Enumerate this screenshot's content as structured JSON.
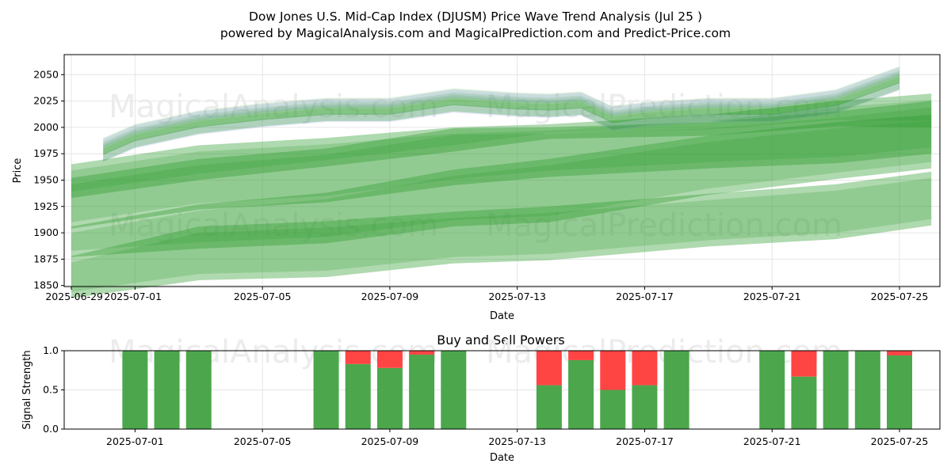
{
  "title_line1": "Dow Jones U.S. Mid-Cap Index (DJUSM) Price Wave Trend Analysis (Jul 25 )",
  "title_line2": "powered by MagicalAnalysis.com and MagicalPrediction.com and Predict-Price.com",
  "watermarks": [
    "MagicalAnalysis.com",
    "MagicalPrediction.com"
  ],
  "colors": {
    "band_green": "#2e9b2e",
    "band_blue": "#6b7fe0",
    "buy": "#4ca64c",
    "sell": "#ff4444",
    "grid": "#e6e6e6",
    "watermark": "#ececec"
  },
  "chart_data": [
    {
      "type": "area",
      "title": "",
      "xlabel": "Date",
      "ylabel": "Price",
      "xlim": [
        "2025-06-29",
        "2025-07-26"
      ],
      "ylim": [
        1849,
        2069
      ],
      "grid": true,
      "x_tick_labels": [
        "2025-06-29",
        "2025-07-01",
        "2025-07-05",
        "2025-07-09",
        "2025-07-13",
        "2025-07-17",
        "2025-07-21",
        "2025-07-25"
      ],
      "y_tick_labels": [
        "1850",
        "1875",
        "1900",
        "1925",
        "1950",
        "1975",
        "2000",
        "2025",
        "2050"
      ],
      "wave_x": [
        "2025-06-30",
        "2025-07-01",
        "2025-07-03",
        "2025-07-05",
        "2025-07-07",
        "2025-07-09",
        "2025-07-11",
        "2025-07-13",
        "2025-07-14",
        "2025-07-15",
        "2025-07-16",
        "2025-07-17",
        "2025-07-19",
        "2025-07-21",
        "2025-07-23",
        "2025-07-25"
      ],
      "wave_mid": [
        1978,
        1991,
        2004,
        2011,
        2016,
        2016,
        2025,
        2021,
        2020,
        2022,
        2008,
        2012,
        2016,
        2016,
        2024,
        2046
      ],
      "forecast_bands": [
        {
          "x": [
            "2025-06-29",
            "2025-07-03",
            "2025-07-07",
            "2025-07-11",
            "2025-07-14",
            "2025-07-19",
            "2025-07-23",
            "2025-07-26"
          ],
          "upper": [
            1965,
            1983,
            1990,
            2000,
            2003,
            2012,
            2025,
            2032
          ],
          "lower": [
            1933,
            1950,
            1963,
            1977,
            1989,
            1992,
            2001,
            2000
          ]
        },
        {
          "x": [
            "2025-06-29",
            "2025-07-03",
            "2025-07-07",
            "2025-07-11",
            "2025-07-14",
            "2025-07-19",
            "2025-07-23",
            "2025-07-26"
          ],
          "upper": [
            1952,
            1970,
            1980,
            1999,
            2000,
            2005,
            2015,
            2025
          ],
          "lower": [
            1904,
            1922,
            1929,
            1945,
            1953,
            1961,
            1966,
            1975
          ]
        },
        {
          "x": [
            "2025-06-29",
            "2025-07-03",
            "2025-07-07",
            "2025-07-11",
            "2025-07-14",
            "2025-07-19",
            "2025-07-23",
            "2025-07-26"
          ],
          "upper": [
            1906,
            1927,
            1938,
            1960,
            1970,
            1992,
            2005,
            2012
          ],
          "lower": [
            1877,
            1885,
            1890,
            1906,
            1910,
            1936,
            1951,
            1961
          ]
        },
        {
          "x": [
            "2025-06-29",
            "2025-07-03",
            "2025-07-07",
            "2025-07-11",
            "2025-07-14",
            "2025-07-19",
            "2025-07-23",
            "2025-07-26"
          ],
          "upper": [
            1878,
            1906,
            1911,
            1920,
            1925,
            1937,
            1946,
            1958
          ],
          "lower": [
            1838,
            1855,
            1858,
            1871,
            1874,
            1887,
            1894,
            1907
          ]
        }
      ]
    },
    {
      "type": "bar",
      "title": "Buy and Sell Powers",
      "xlabel": "Date",
      "ylabel": "Signal Strength",
      "xlim": [
        "2025-06-29",
        "2025-07-26"
      ],
      "ylim": [
        0,
        1
      ],
      "grid": true,
      "x_tick_labels": [
        "2025-07-01",
        "2025-07-05",
        "2025-07-09",
        "2025-07-13",
        "2025-07-17",
        "2025-07-21",
        "2025-07-25"
      ],
      "y_tick_labels": [
        "0.0",
        "0.5",
        "1.0"
      ],
      "x": [
        "2025-07-01",
        "2025-07-02",
        "2025-07-03",
        "2025-07-07",
        "2025-07-08",
        "2025-07-09",
        "2025-07-10",
        "2025-07-11",
        "2025-07-14",
        "2025-07-15",
        "2025-07-16",
        "2025-07-17",
        "2025-07-18",
        "2025-07-21",
        "2025-07-22",
        "2025-07-23",
        "2025-07-24",
        "2025-07-25"
      ],
      "series": [
        {
          "name": "Buy",
          "values": [
            1.0,
            1.0,
            1.0,
            1.0,
            0.83,
            0.78,
            0.95,
            1.0,
            0.56,
            0.88,
            0.5,
            0.56,
            1.0,
            1.0,
            0.67,
            1.0,
            1.0,
            0.94
          ]
        },
        {
          "name": "Sell",
          "values": [
            0.0,
            0.0,
            0.0,
            0.0,
            0.17,
            0.22,
            0.05,
            0.0,
            0.44,
            0.12,
            0.5,
            0.44,
            0.0,
            0.0,
            0.33,
            0.0,
            0.0,
            0.06
          ]
        }
      ]
    }
  ]
}
